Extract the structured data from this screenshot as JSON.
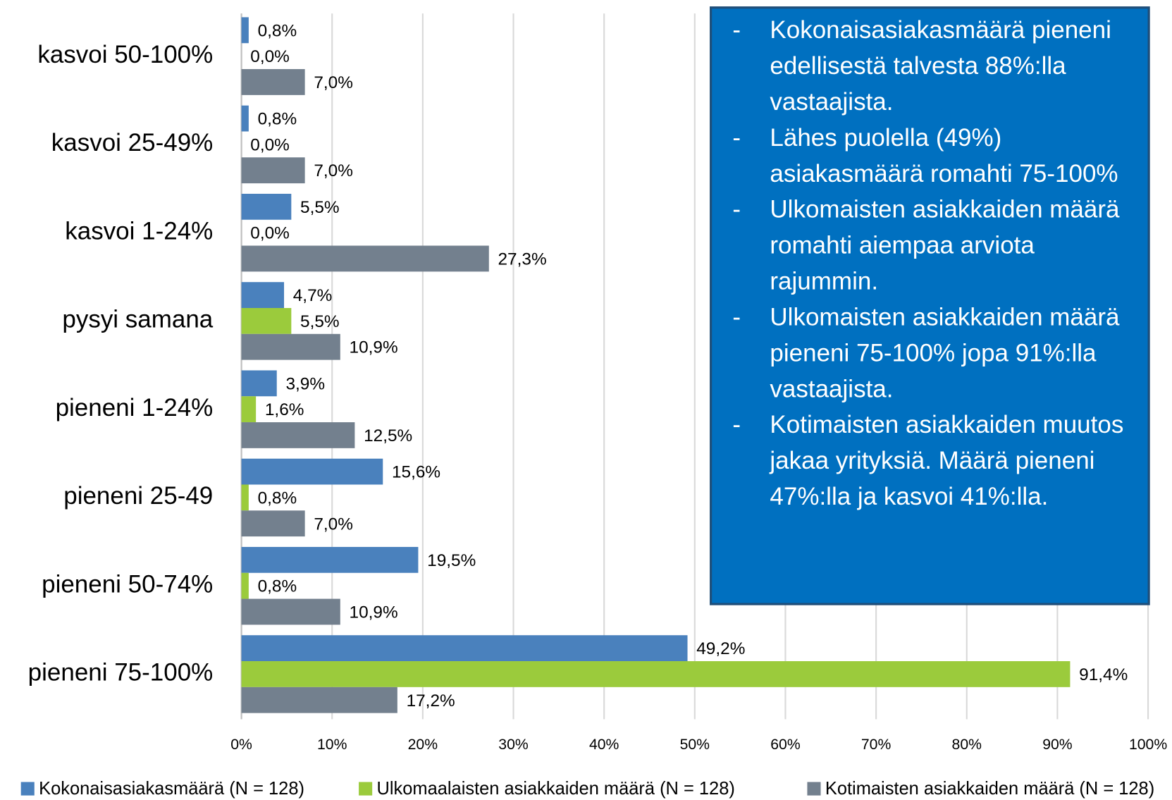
{
  "chart_data": {
    "type": "hbar",
    "categories": [
      "kasvoi 50-100%",
      "kasvoi 25-49%",
      "kasvoi 1-24%",
      "pysyi samana",
      "pieneni 1-24%",
      "pieneni 25-49",
      "pieneni 50-74%",
      "pieneni 75-100%"
    ],
    "series": [
      {
        "name": "Kokonaisasiakasmäärä (N = 128)",
        "color": "#4a81bd",
        "values": [
          0.8,
          0.8,
          5.5,
          4.7,
          3.9,
          15.6,
          19.5,
          49.2
        ],
        "value_labels": [
          "0,8%",
          "0,8%",
          "5,5%",
          "4,7%",
          "3,9%",
          "15,6%",
          "19,5%",
          "49,2%"
        ]
      },
      {
        "name": "Ulkomaalaisten asiakkaiden määrä (N = 128)",
        "color": "#9bcb3c",
        "values": [
          0.0,
          0.0,
          0.0,
          5.5,
          1.6,
          0.8,
          0.8,
          91.4
        ],
        "value_labels": [
          "0,0%",
          "0,0%",
          "0,0%",
          "5,5%",
          "1,6%",
          "0,8%",
          "0,8%",
          "91,4%"
        ]
      },
      {
        "name": "Kotimaisten asiakkaiden määrä (N = 128)",
        "color": "#73808e",
        "values": [
          7.0,
          7.0,
          27.3,
          10.9,
          12.5,
          7.0,
          10.9,
          17.2
        ],
        "value_labels": [
          "7,0%",
          "7,0%",
          "27,3%",
          "10,9%",
          "12,5%",
          "7,0%",
          "10,9%",
          "17,2%"
        ]
      }
    ],
    "xlim": [
      0,
      100
    ],
    "xticks": [
      {
        "value": 0,
        "label": "0%"
      },
      {
        "value": 10,
        "label": "10%"
      },
      {
        "value": 20,
        "label": "20%"
      },
      {
        "value": 30,
        "label": "30%"
      },
      {
        "value": 40,
        "label": "40%"
      },
      {
        "value": 50,
        "label": "50%"
      },
      {
        "value": 60,
        "label": "60%"
      },
      {
        "value": 70,
        "label": "70%"
      },
      {
        "value": 80,
        "label": "80%"
      },
      {
        "value": 90,
        "label": "90%"
      },
      {
        "value": 100,
        "label": "100%"
      }
    ],
    "grid": true,
    "legend": "bottom",
    "annotations": [
      "Kokonaisasiakasmäärä pieneni edellisestä talvesta 88%:lla vastaajista.",
      "Lähes puolella (49%) asiakasmäärä romahti 75-100%",
      "Ulkomaisten asiakkaiden määrä romahti aiempaa arviota rajummin.",
      "Ulkomaisten asiakkaiden määrä pieneni 75-100% jopa 91%:lla vastaajista.",
      "Kotimaisten asiakkaiden muutos jakaa yrityksiä. Määrä pieneni 47%:lla ja kasvoi 41%:lla."
    ]
  }
}
